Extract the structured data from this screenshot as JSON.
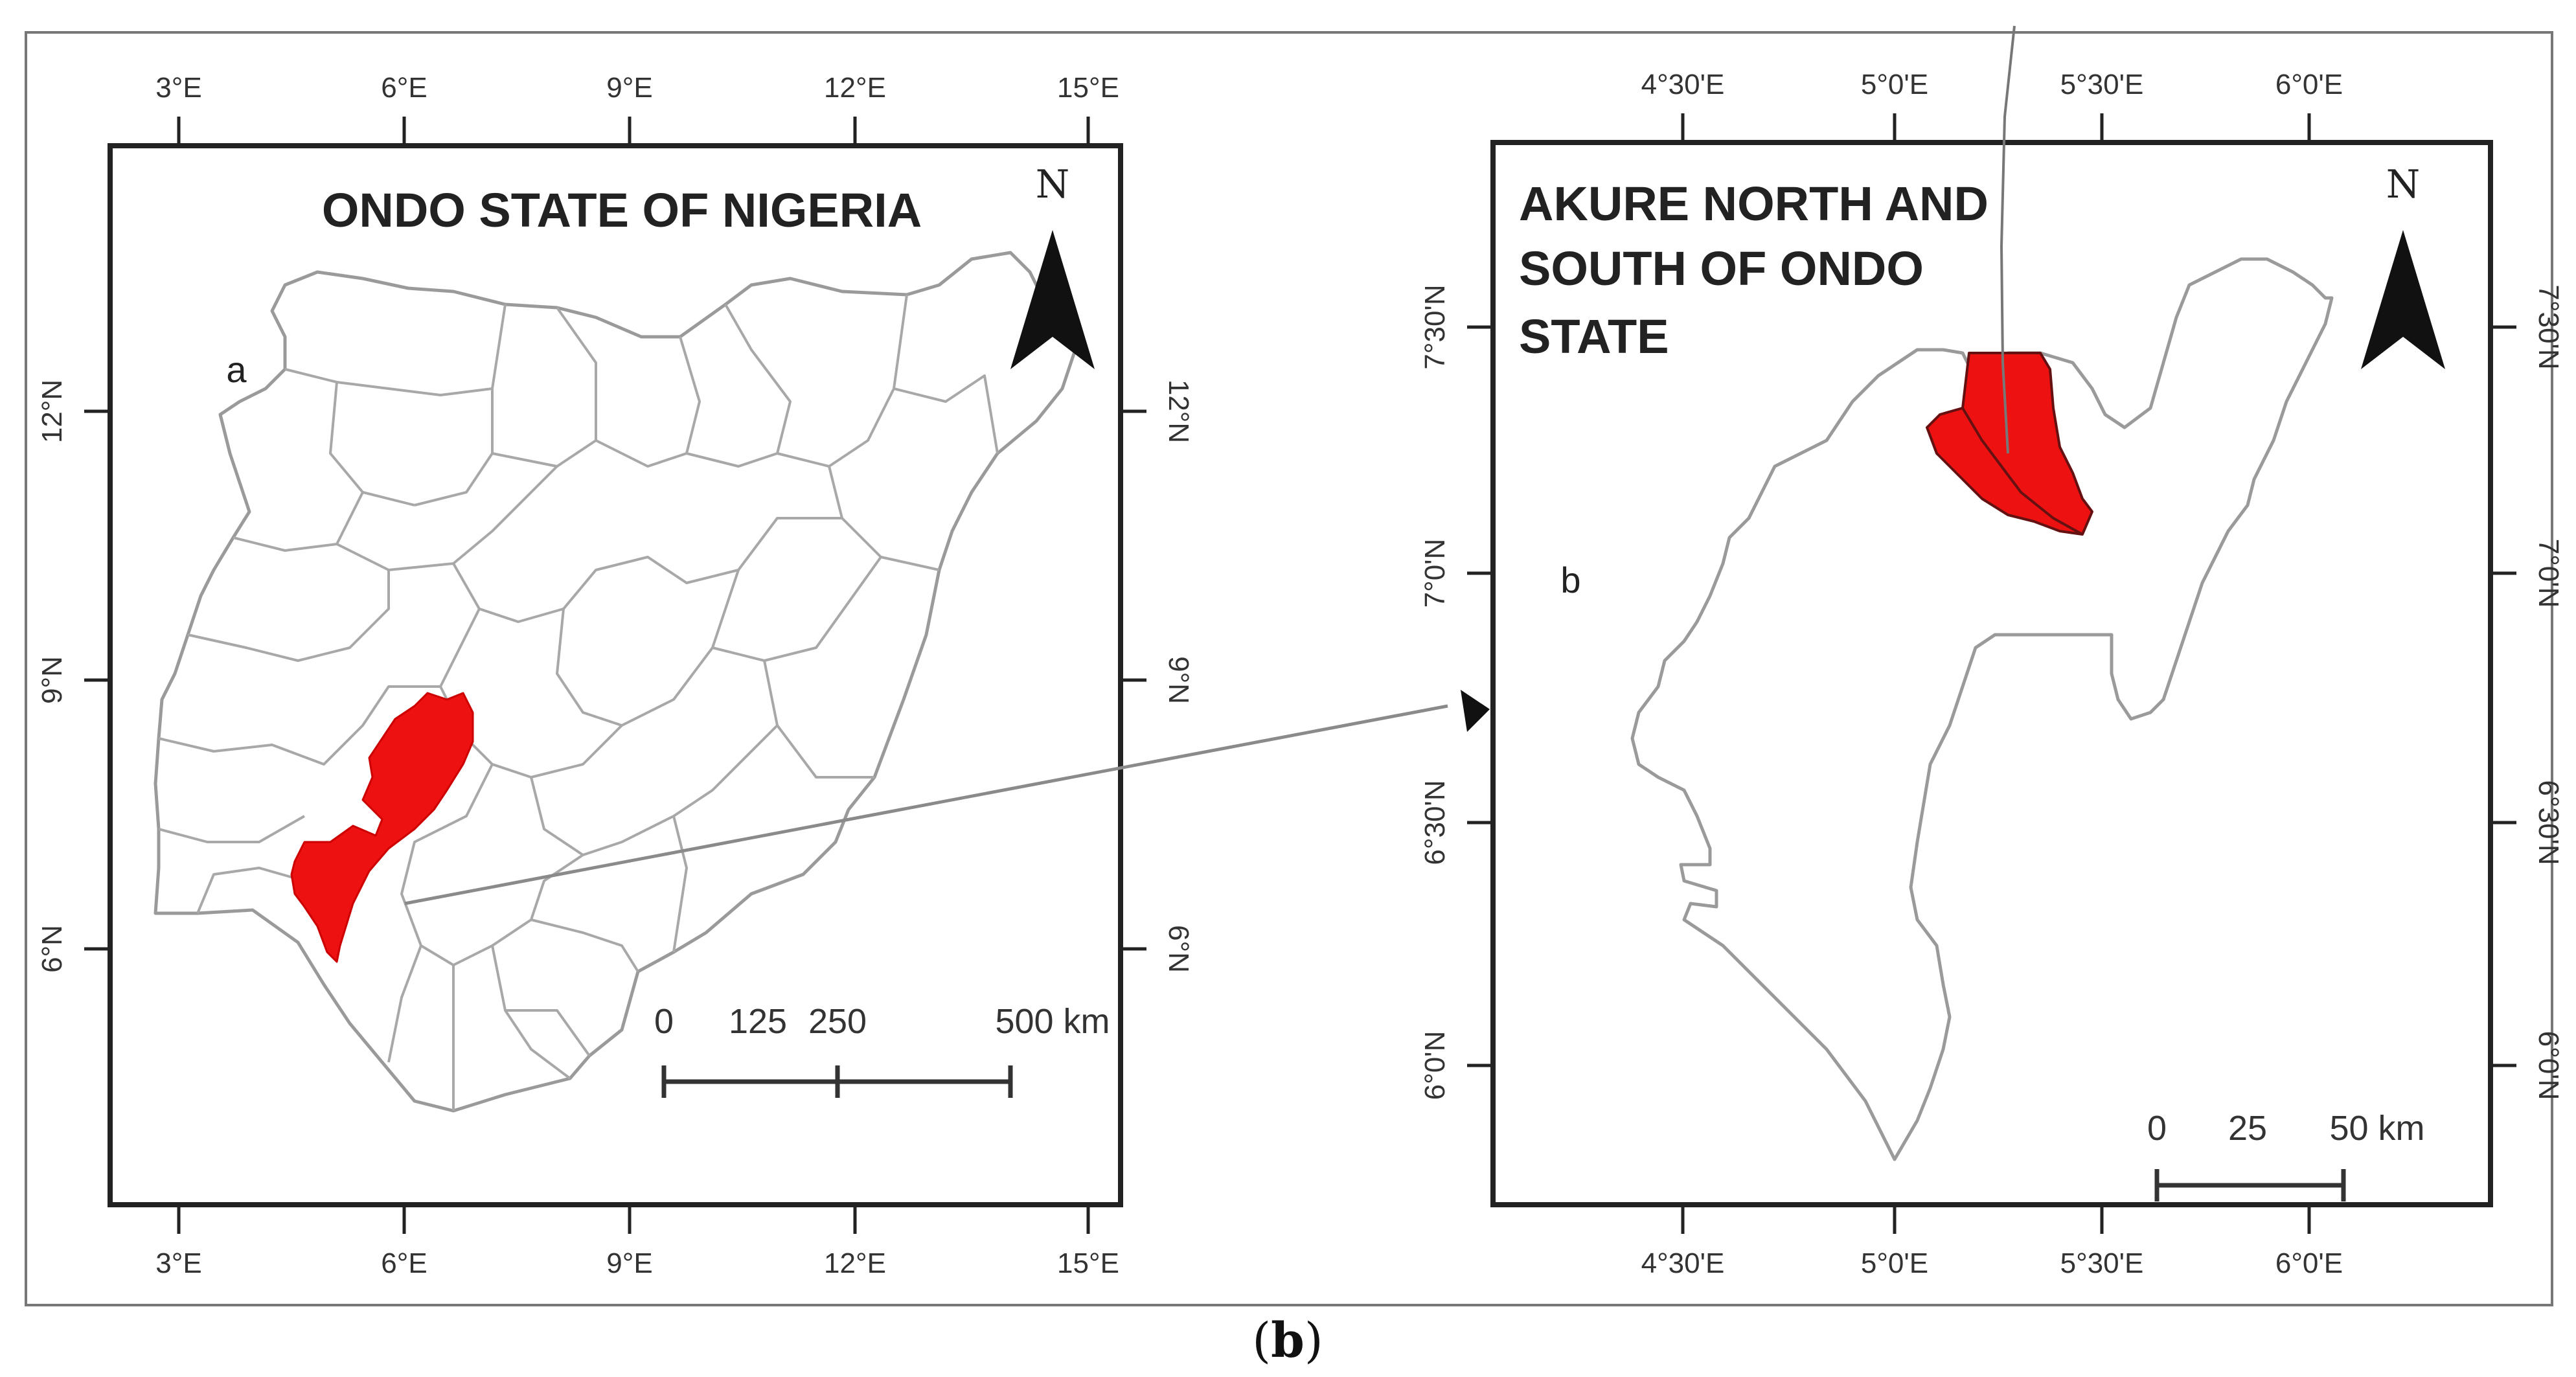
{
  "colors": {
    "highlight": "#ee1111",
    "boundary": "#9a9a9a",
    "frame": "#222222"
  },
  "left_map": {
    "title": "ONDO STATE OF NIGERIA",
    "panel_letter": "a",
    "north_label": "N",
    "top_ticks": [
      "3°E",
      "6°E",
      "9°E",
      "12°E",
      "15°E"
    ],
    "bottom_ticks": [
      "3°E",
      "6°E",
      "9°E",
      "12°E",
      "15°E"
    ],
    "left_ticks": [
      "12°N",
      "9°N",
      "6°N"
    ],
    "right_ticks": [
      "12°N",
      "9°N",
      "6°N"
    ],
    "scale_labels": [
      "0",
      "125",
      "250",
      "500 km"
    ]
  },
  "right_map": {
    "title_lines": [
      "AKURE NORTH AND",
      "SOUTH OF ONDO",
      "STATE"
    ],
    "panel_letter": "b",
    "north_label": "N",
    "top_ticks": [
      "4°30'E",
      "5°0'E",
      "5°30'E",
      "6°0'E"
    ],
    "bottom_ticks": [
      "4°30'E",
      "5°0'E",
      "5°30'E",
      "6°0'E"
    ],
    "left_ticks": [
      "7°30'N",
      "7°0'N",
      "6°30'N",
      "6°0'N"
    ],
    "right_ticks": [
      "7°30'N",
      "7°0'N",
      "6°30'N",
      "6°0'N"
    ],
    "scale_labels": [
      "0",
      "25",
      "50 km"
    ]
  },
  "caption": {
    "open": "(",
    "letter": "b",
    "close": ")"
  }
}
